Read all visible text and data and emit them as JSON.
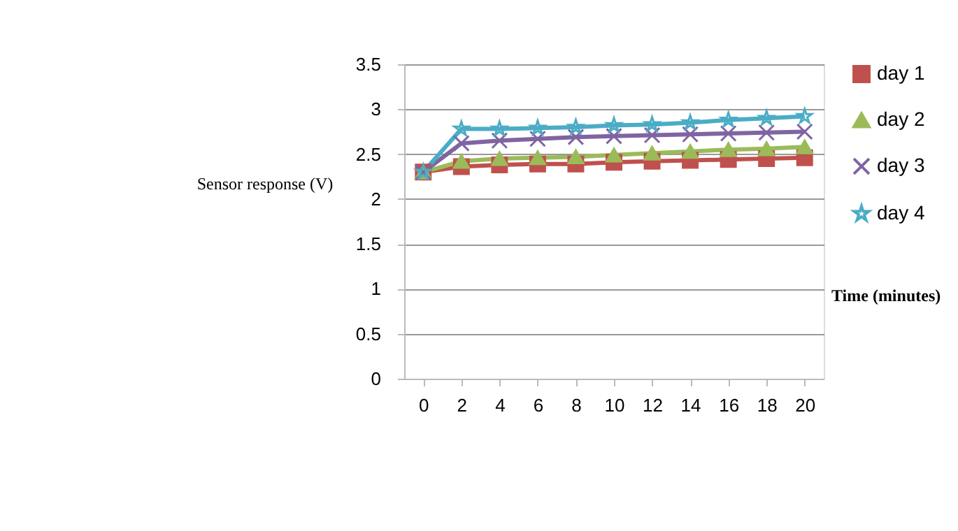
{
  "chart_data": {
    "type": "line",
    "xlabel": "Time (minutes)",
    "ylabel": "Sensor response (V)",
    "categories": [
      "0",
      "2",
      "4",
      "6",
      "8",
      "10",
      "12",
      "14",
      "16",
      "18",
      "20"
    ],
    "series": [
      {
        "name": "day 1",
        "color": "#c0504d",
        "marker": "square",
        "values": [
          2.3,
          2.36,
          2.38,
          2.39,
          2.39,
          2.41,
          2.42,
          2.43,
          2.44,
          2.45,
          2.46
        ]
      },
      {
        "name": "day 2",
        "color": "#9bbb59",
        "marker": "triangle",
        "values": [
          2.3,
          2.42,
          2.45,
          2.46,
          2.47,
          2.49,
          2.51,
          2.53,
          2.55,
          2.56,
          2.58
        ]
      },
      {
        "name": "day 3",
        "color": "#8064a2",
        "marker": "cross",
        "values": [
          2.3,
          2.62,
          2.65,
          2.67,
          2.69,
          2.7,
          2.71,
          2.72,
          2.73,
          2.74,
          2.75
        ]
      },
      {
        "name": "day 4",
        "color": "#4bacc6",
        "marker": "star",
        "values": [
          2.3,
          2.78,
          2.78,
          2.79,
          2.8,
          2.82,
          2.83,
          2.85,
          2.88,
          2.9,
          2.92
        ]
      }
    ],
    "ylim": [
      0,
      3.5
    ],
    "yticks": [
      0,
      0.5,
      1,
      1.5,
      2,
      2.5,
      3,
      3.5
    ],
    "grid": "y",
    "legend": "right",
    "line_style": "solid"
  }
}
